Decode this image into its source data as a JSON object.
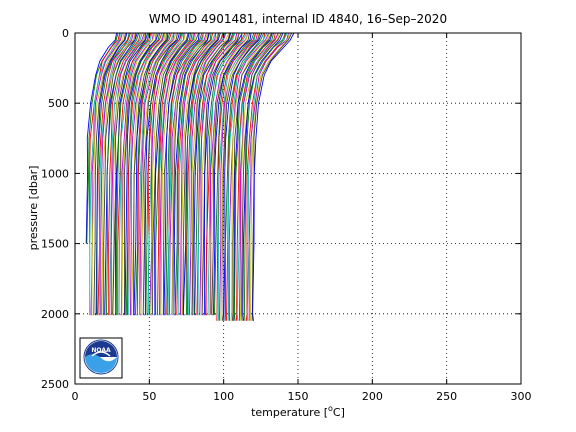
{
  "chart_data": {
    "type": "line",
    "title": "WMO ID 4901481, internal ID 4840, 16–Sep–2020",
    "xlabel_prefix": "temperature [",
    "xlabel_unit": "o",
    "xlabel_suffix": "C]",
    "ylabel": "pressure [dbar]",
    "xlim": [
      0,
      300
    ],
    "ylim": [
      2500,
      0
    ],
    "y_reversed": true,
    "grid": true,
    "grid_style": "dotted",
    "x_ticks": [
      "0",
      "50",
      "100",
      "150",
      "200",
      "250",
      "300"
    ],
    "y_ticks": [
      "0",
      "500",
      "1000",
      "1500",
      "2000",
      "2500"
    ],
    "series_description": "waterfall of ~120 stacked temperature profiles, each offset by about 1 degree along the x axis",
    "profile_count": 120,
    "profile_offset_step": 0.95,
    "first_profile_surface_temperature": 28,
    "first_profile_deep_temperature": 7,
    "sample_profile_offset": [
      {
        "pressure": 0,
        "temperature": 28
      },
      {
        "pressure": 50,
        "temperature": 27
      },
      {
        "pressure": 100,
        "temperature": 23
      },
      {
        "pressure": 200,
        "temperature": 17
      },
      {
        "pressure": 300,
        "temperature": 14
      },
      {
        "pressure": 500,
        "temperature": 10.5
      },
      {
        "pressure": 750,
        "temperature": 8.8
      },
      {
        "pressure": 1000,
        "temperature": 8
      },
      {
        "pressure": 1500,
        "temperature": 7.4
      },
      {
        "pressure": 2000,
        "temperature": 7
      }
    ],
    "colors": [
      "#0000ff",
      "#008000",
      "#ff0000",
      "#00bfbf",
      "#bf00bf",
      "#bfbf00",
      "#404040"
    ]
  },
  "logo": {
    "text": "NOAA",
    "colors": {
      "navy": "#1b3a8f",
      "sky": "#3aa0e8",
      "white": "#ffffff"
    }
  }
}
